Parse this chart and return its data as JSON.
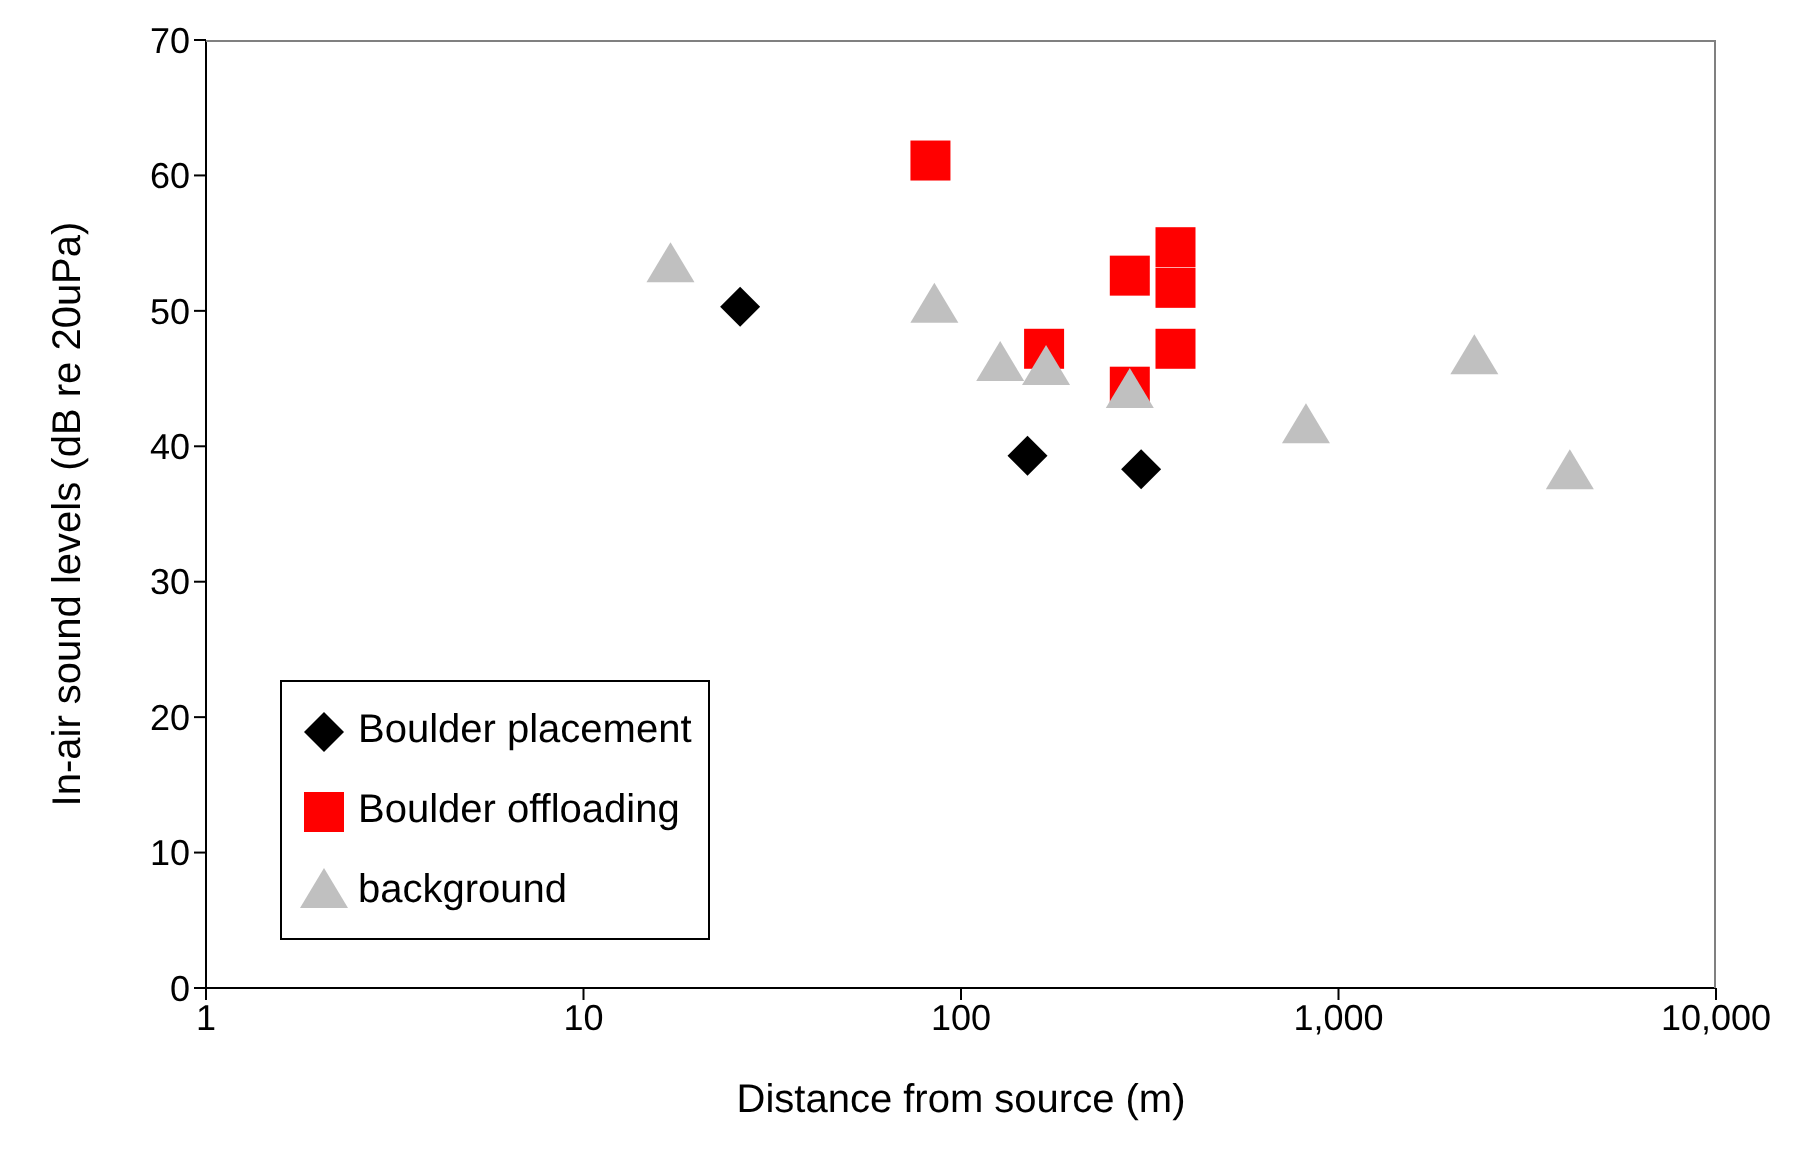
{
  "chart_data": {
    "type": "scatter",
    "xlabel": "Distance from source (m)",
    "ylabel": "In-air sound levels (dB re 20uPa)",
    "log": "x",
    "xlim": [
      1,
      10000
    ],
    "xticks": [
      1,
      10,
      100,
      {
        "value": 1000,
        "label": "1,000"
      },
      {
        "value": 10000,
        "label": "10,000"
      }
    ],
    "ylim": [
      0,
      70
    ],
    "yticks": [
      0,
      10,
      20,
      30,
      40,
      50,
      60,
      70
    ],
    "grid": false,
    "legend": "bottom left",
    "series": [
      {
        "name": "Boulder placement",
        "color": "#000000",
        "marker": "diamond",
        "x": [
          26,
          150,
          300
        ],
        "values": [
          50.3,
          39.3,
          38.3
        ]
      },
      {
        "name": "Boulder offloading",
        "color": "#ff0000",
        "marker": "square",
        "x": [
          83,
          166,
          280,
          370,
          370,
          370,
          280
        ],
        "values": [
          61.1,
          47.2,
          52.6,
          54.7,
          51.7,
          47.2,
          44.4
        ]
      },
      {
        "name": "background",
        "color": "#c0c0c0",
        "marker": "triangle",
        "x": [
          17,
          85,
          127,
          168,
          280,
          820,
          2290,
          4100
        ],
        "values": [
          53.3,
          50.3,
          46,
          45.7,
          44,
          41.4,
          46.5,
          38
        ]
      }
    ]
  }
}
